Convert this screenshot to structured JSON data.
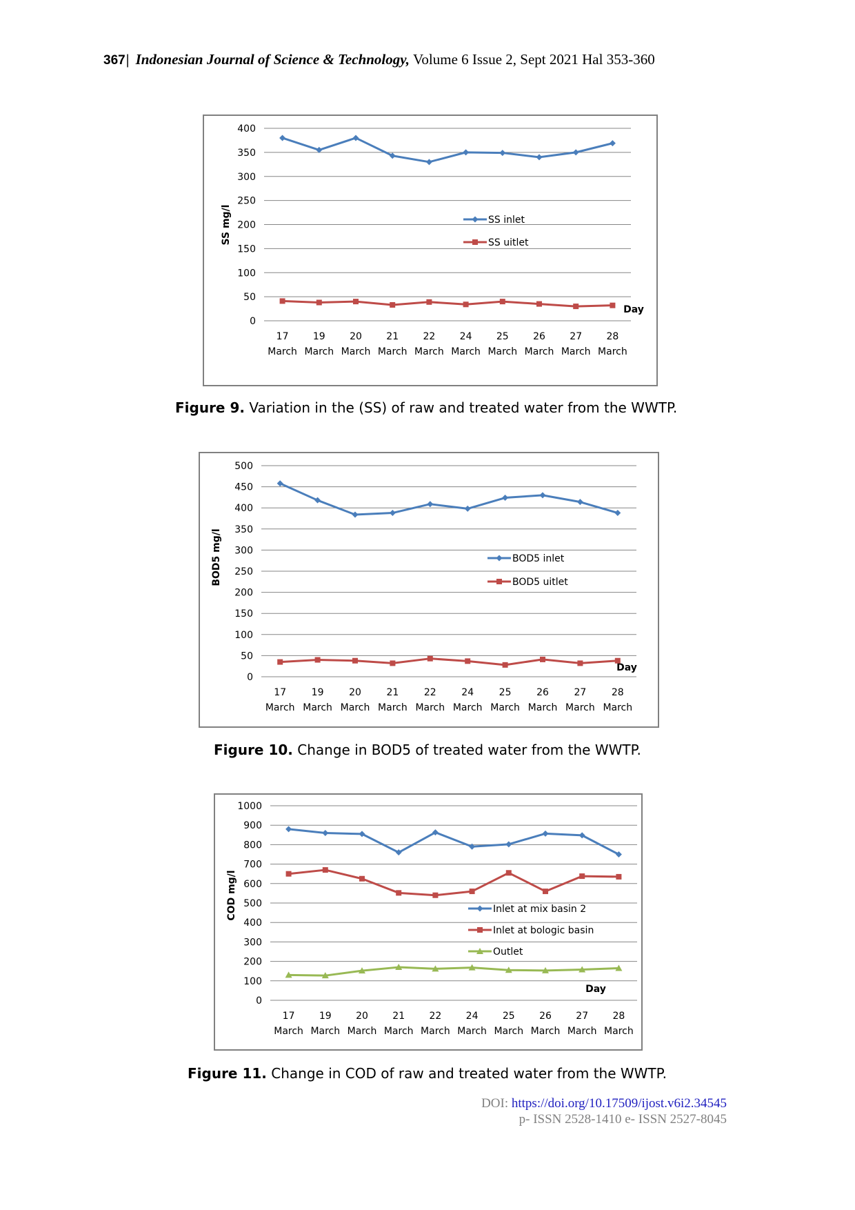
{
  "header": {
    "page_number": "367",
    "journal": "Indonesian Journal of Science & Technology,",
    "volume_info": "Volume 6 Issue 2, Sept 2021 Hal 353-360"
  },
  "figures": [
    {
      "caption_label": "Figure 9.",
      "caption_text": "Variation in the (SS) of raw and treated water from the WWTP.",
      "chart_data": {
        "type": "line",
        "title": "",
        "ylabel": "SS  mg/l",
        "xlabel": "Day",
        "categories": [
          [
            "17",
            "March"
          ],
          [
            "19",
            "March"
          ],
          [
            "20",
            "March"
          ],
          [
            "21",
            "March"
          ],
          [
            "22",
            "March"
          ],
          [
            "24",
            "March"
          ],
          [
            "25",
            "March"
          ],
          [
            "26",
            "March"
          ],
          [
            "27",
            "March"
          ],
          [
            "28",
            "March"
          ]
        ],
        "ylim": [
          0,
          400
        ],
        "yticks": [
          0,
          50,
          100,
          150,
          200,
          250,
          300,
          350,
          400
        ],
        "series": [
          {
            "name": "SS inlet",
            "color": "#4a7ebb",
            "marker": "diamond",
            "values": [
              380,
              355,
              380,
              343,
              330,
              350,
              349,
              340,
              350,
              369
            ]
          },
          {
            "name": "SS uitlet",
            "color": "#be4b48",
            "marker": "square",
            "values": [
              41,
              38,
              40,
              33,
              39,
              34,
              40,
              35,
              30,
              32
            ]
          }
        ],
        "legend_position": "center-right"
      }
    },
    {
      "caption_label": "Figure 10.",
      "caption_text": "Change in BOD5 of treated water from the WWTP.",
      "chart_data": {
        "type": "line",
        "title": "",
        "ylabel": "BOD5  mg/l",
        "xlabel": "Day",
        "categories": [
          [
            "17",
            "March"
          ],
          [
            "19",
            "March"
          ],
          [
            "20",
            "March"
          ],
          [
            "21",
            "March"
          ],
          [
            "22",
            "March"
          ],
          [
            "24",
            "March"
          ],
          [
            "25",
            "March"
          ],
          [
            "26",
            "March"
          ],
          [
            "27",
            "March"
          ],
          [
            "28",
            "March"
          ]
        ],
        "ylim": [
          0,
          500
        ],
        "yticks": [
          0,
          50,
          100,
          150,
          200,
          250,
          300,
          350,
          400,
          450,
          500
        ],
        "series": [
          {
            "name": "BOD5 inlet",
            "color": "#4a7ebb",
            "marker": "diamond",
            "values": [
              458,
              418,
              384,
              388,
              409,
              398,
              424,
              430,
              414,
              388
            ]
          },
          {
            "name": "BOD5 uitlet",
            "color": "#be4b48",
            "marker": "square",
            "values": [
              35,
              40,
              38,
              32,
              43,
              37,
              28,
              41,
              32,
              38
            ]
          }
        ],
        "legend_position": "center-right"
      }
    },
    {
      "caption_label": "Figure 11.",
      "caption_text": "Change in COD of raw and treated water from the WWTP.",
      "chart_data": {
        "type": "line",
        "title": "",
        "ylabel": "COD  mg/l",
        "xlabel": "Day",
        "categories": [
          [
            "17",
            "March"
          ],
          [
            "19",
            "March"
          ],
          [
            "20",
            "March"
          ],
          [
            "21",
            "March"
          ],
          [
            "22",
            "March"
          ],
          [
            "24",
            "March"
          ],
          [
            "25",
            "March"
          ],
          [
            "26",
            "March"
          ],
          [
            "27",
            "March"
          ],
          [
            "28",
            "March"
          ]
        ],
        "ylim": [
          0,
          1000
        ],
        "yticks": [
          0,
          100,
          200,
          300,
          400,
          500,
          600,
          700,
          800,
          900,
          1000
        ],
        "series": [
          {
            "name": "Inlet at mix basin 2",
            "color": "#4a7ebb",
            "marker": "diamond",
            "values": [
              880,
              860,
              855,
              760,
              863,
              790,
              802,
              857,
              848,
              750
            ]
          },
          {
            "name": "Inlet at bologic basin",
            "color": "#be4b48",
            "marker": "square",
            "values": [
              650,
              670,
              625,
              552,
              540,
              560,
              655,
              560,
              638,
              635
            ]
          },
          {
            "name": "Outlet",
            "color": "#98b954",
            "marker": "triangle",
            "values": [
              130,
              127,
              152,
              170,
              162,
              168,
              155,
              153,
              158,
              165
            ]
          }
        ],
        "legend_position": "lower-right"
      }
    }
  ],
  "footer": {
    "doi_label": "DOI:",
    "doi_link": "https://doi.org/10.17509/ijost.v6i2.34545",
    "issn": "p- ISSN 2528-1410 e- ISSN 2527-8045"
  }
}
